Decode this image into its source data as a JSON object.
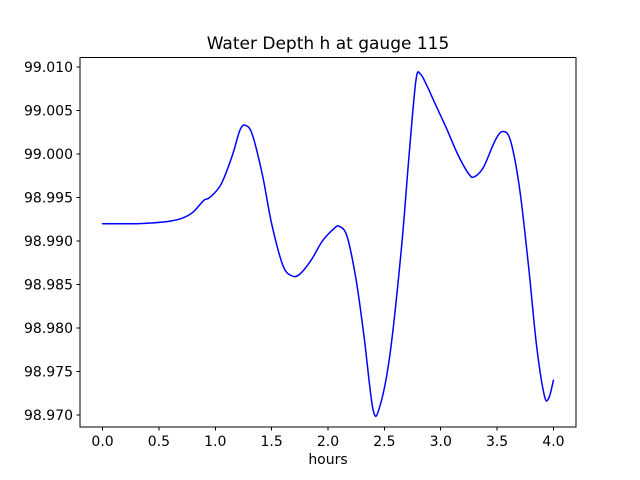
{
  "chart": {
    "title": "Water Depth h at gauge 115",
    "xlabel": "hours"
  },
  "chart_data": {
    "type": "line",
    "title": "Water Depth h at gauge 115",
    "xlabel": "hours",
    "ylabel": "",
    "grid": false,
    "legend": null,
    "line_color": "#0000ff",
    "line_width": 1.5,
    "xlim": [
      -0.2,
      4.2
    ],
    "ylim": [
      98.9686,
      99.0111
    ],
    "xticks": [
      0.0,
      0.5,
      1.0,
      1.5,
      2.0,
      2.5,
      3.0,
      3.5,
      4.0
    ],
    "xtick_labels": [
      "0.0",
      "0.5",
      "1.0",
      "1.5",
      "2.0",
      "2.5",
      "3.0",
      "3.5",
      "4.0"
    ],
    "yticks": [
      98.97,
      98.975,
      98.98,
      98.985,
      98.99,
      98.995,
      99.0,
      99.005,
      99.01
    ],
    "ytick_labels": [
      "98.970",
      "98.975",
      "98.980",
      "98.985",
      "98.990",
      "98.995",
      "99.000",
      "99.005",
      "99.010"
    ],
    "series": [
      {
        "name": "h",
        "color": "#0000ff",
        "points": [
          [
            0.0,
            98.992
          ],
          [
            0.15,
            98.992
          ],
          [
            0.3,
            98.992
          ],
          [
            0.45,
            98.9921
          ],
          [
            0.6,
            98.9923
          ],
          [
            0.7,
            98.9926
          ],
          [
            0.8,
            98.9933
          ],
          [
            0.9,
            98.9947
          ],
          [
            0.95,
            98.995
          ],
          [
            1.05,
            98.9965
          ],
          [
            1.15,
            98.9998
          ],
          [
            1.22,
            99.0028
          ],
          [
            1.27,
            99.0033
          ],
          [
            1.33,
            99.0022
          ],
          [
            1.42,
            98.9975
          ],
          [
            1.5,
            98.992
          ],
          [
            1.6,
            98.9872
          ],
          [
            1.68,
            98.986
          ],
          [
            1.75,
            98.9862
          ],
          [
            1.85,
            98.9878
          ],
          [
            1.95,
            98.99
          ],
          [
            2.05,
            98.9914
          ],
          [
            2.1,
            98.9917
          ],
          [
            2.17,
            98.9905
          ],
          [
            2.25,
            98.9855
          ],
          [
            2.32,
            98.979
          ],
          [
            2.4,
            98.9706
          ],
          [
            2.46,
            98.971
          ],
          [
            2.55,
            98.977
          ],
          [
            2.65,
            98.989
          ],
          [
            2.72,
            99.0
          ],
          [
            2.78,
            99.0085
          ],
          [
            2.82,
            99.0092
          ],
          [
            2.88,
            99.0078
          ],
          [
            2.95,
            99.0058
          ],
          [
            3.05,
            99.003
          ],
          [
            3.15,
            99.0
          ],
          [
            3.25,
            98.9977
          ],
          [
            3.3,
            98.9974
          ],
          [
            3.38,
            98.9985
          ],
          [
            3.48,
            99.0015
          ],
          [
            3.55,
            99.0026
          ],
          [
            3.62,
            99.0015
          ],
          [
            3.7,
            98.996
          ],
          [
            3.78,
            98.987
          ],
          [
            3.85,
            98.978
          ],
          [
            3.92,
            98.9722
          ],
          [
            3.96,
            98.972
          ],
          [
            4.0,
            98.974
          ]
        ]
      }
    ]
  }
}
